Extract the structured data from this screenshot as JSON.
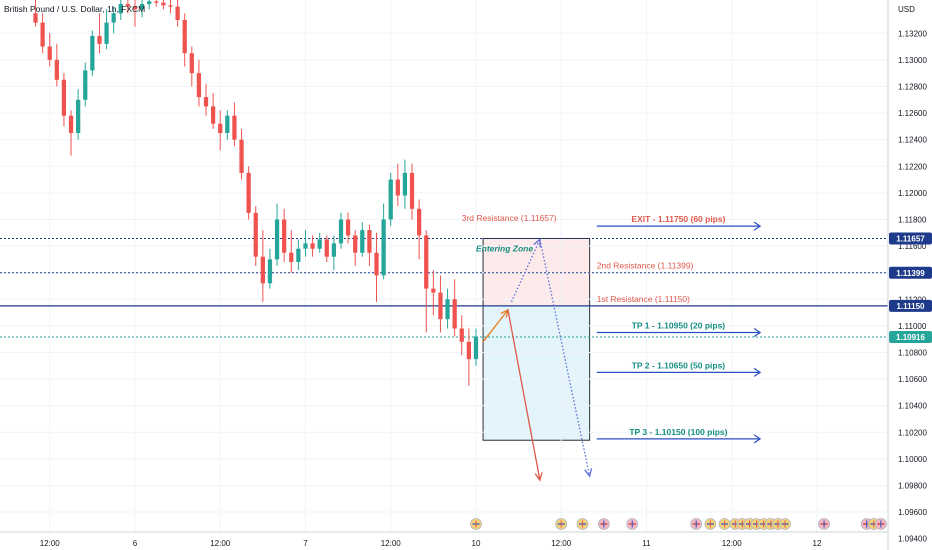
{
  "chart_data": {
    "type": "candlestick",
    "title": "British Pound / U.S. Dollar, 1h, FXCM",
    "currency": "USD",
    "ylim": [
      1.0945,
      1.1345
    ],
    "y_ticks": [
      1.132,
      1.13,
      1.128,
      1.126,
      1.124,
      1.122,
      1.12,
      1.118,
      1.116,
      1.114,
      1.112,
      1.11,
      1.108,
      1.106,
      1.104,
      1.102,
      1.1,
      1.098,
      1.096,
      1.094
    ],
    "x_ticks": [
      {
        "label": "12:00",
        "x": 2
      },
      {
        "label": "6",
        "x": 14
      },
      {
        "label": "12:00",
        "x": 26
      },
      {
        "label": "7",
        "x": 38
      },
      {
        "label": "12:00",
        "x": 50
      },
      {
        "label": "10",
        "x": 62
      },
      {
        "label": "12:00",
        "x": 74
      },
      {
        "label": "11",
        "x": 86
      },
      {
        "label": "12:00",
        "x": 98
      },
      {
        "label": "12",
        "x": 110
      }
    ],
    "xlim": [
      -5,
      120
    ],
    "candles": [
      [
        1.1335,
        1.1345,
        1.1325,
        1.1328
      ],
      [
        1.1328,
        1.1335,
        1.1305,
        1.131
      ],
      [
        1.131,
        1.132,
        1.1295,
        1.13
      ],
      [
        1.13,
        1.1312,
        1.128,
        1.1285
      ],
      [
        1.1285,
        1.129,
        1.125,
        1.1258
      ],
      [
        1.1258,
        1.1262,
        1.1228,
        1.1245
      ],
      [
        1.1245,
        1.1278,
        1.124,
        1.127
      ],
      [
        1.127,
        1.1298,
        1.1265,
        1.1292
      ],
      [
        1.1292,
        1.1322,
        1.1288,
        1.1318
      ],
      [
        1.1318,
        1.1335,
        1.1305,
        1.1312
      ],
      [
        1.1312,
        1.1338,
        1.1308,
        1.1328
      ],
      [
        1.1328,
        1.134,
        1.132,
        1.1335
      ],
      [
        1.1335,
        1.1345,
        1.133,
        1.1342
      ],
      [
        1.1342,
        1.1345,
        1.1335,
        1.134
      ],
      [
        1.134,
        1.1345,
        1.1325,
        1.1338
      ],
      [
        1.1338,
        1.1345,
        1.1332,
        1.1342
      ],
      [
        1.1342,
        1.1345,
        1.1338,
        1.1344
      ],
      [
        1.1344,
        1.1345,
        1.134,
        1.1343
      ],
      [
        1.1343,
        1.1345,
        1.1338,
        1.1341
      ],
      [
        1.1341,
        1.1345,
        1.1335,
        1.134
      ],
      [
        1.134,
        1.1345,
        1.1325,
        1.133
      ],
      [
        1.133,
        1.1335,
        1.1295,
        1.1305
      ],
      [
        1.1305,
        1.131,
        1.128,
        1.129
      ],
      [
        1.129,
        1.13,
        1.1265,
        1.1272
      ],
      [
        1.1272,
        1.1282,
        1.1258,
        1.1265
      ],
      [
        1.1265,
        1.1275,
        1.1248,
        1.1252
      ],
      [
        1.1252,
        1.1262,
        1.1232,
        1.1245
      ],
      [
        1.1245,
        1.1262,
        1.124,
        1.1258
      ],
      [
        1.1258,
        1.1268,
        1.1235,
        1.124
      ],
      [
        1.124,
        1.1248,
        1.121,
        1.1215
      ],
      [
        1.1215,
        1.122,
        1.118,
        1.1185
      ],
      [
        1.1185,
        1.119,
        1.1145,
        1.1152
      ],
      [
        1.1152,
        1.1172,
        1.1118,
        1.1132
      ],
      [
        1.1132,
        1.1158,
        1.1128,
        1.115
      ],
      [
        1.115,
        1.1192,
        1.1145,
        1.118
      ],
      [
        1.118,
        1.1188,
        1.1148,
        1.1155
      ],
      [
        1.1155,
        1.1172,
        1.114,
        1.1148
      ],
      [
        1.1148,
        1.1165,
        1.1142,
        1.1158
      ],
      [
        1.1158,
        1.1172,
        1.1152,
        1.1162
      ],
      [
        1.1162,
        1.1168,
        1.1152,
        1.1158
      ],
      [
        1.1158,
        1.117,
        1.1155,
        1.1165
      ],
      [
        1.1165,
        1.1168,
        1.1148,
        1.1152
      ],
      [
        1.1152,
        1.1168,
        1.1142,
        1.1162
      ],
      [
        1.1162,
        1.1185,
        1.1158,
        1.118
      ],
      [
        1.118,
        1.1185,
        1.1162,
        1.1168
      ],
      [
        1.1168,
        1.1172,
        1.1145,
        1.1155
      ],
      [
        1.1155,
        1.1178,
        1.1152,
        1.1172
      ],
      [
        1.1172,
        1.1176,
        1.1145,
        1.1155
      ],
      [
        1.1155,
        1.117,
        1.1118,
        1.1138
      ],
      [
        1.1138,
        1.1192,
        1.1135,
        1.118
      ],
      [
        1.118,
        1.1215,
        1.1175,
        1.121
      ],
      [
        1.121,
        1.1222,
        1.119,
        1.1198
      ],
      [
        1.1198,
        1.1225,
        1.1188,
        1.1215
      ],
      [
        1.1215,
        1.1222,
        1.118,
        1.1188
      ],
      [
        1.1188,
        1.1195,
        1.115,
        1.1168
      ],
      [
        1.1168,
        1.1172,
        1.1095,
        1.1128
      ],
      [
        1.1128,
        1.1142,
        1.1108,
        1.1125
      ],
      [
        1.1125,
        1.1138,
        1.1095,
        1.1105
      ],
      [
        1.1105,
        1.1128,
        1.1098,
        1.112
      ],
      [
        1.112,
        1.1135,
        1.1092,
        1.1098
      ],
      [
        1.1098,
        1.1108,
        1.1078,
        1.1088
      ],
      [
        1.1088,
        1.1098,
        1.1055,
        1.1075
      ],
      [
        1.1075,
        1.1098,
        1.107,
        1.1092
      ]
    ],
    "horizontal_lines": [
      {
        "y": 1.11657,
        "style": "dotted",
        "color": "#1e3a8a",
        "label": "1.11657"
      },
      {
        "y": 1.11399,
        "style": "dotted",
        "color": "#1e3a8a",
        "label": "1.11399"
      },
      {
        "y": 1.1115,
        "style": "solid",
        "color": "#1e3a8a",
        "label": "1.11150"
      },
      {
        "y": 1.10916,
        "style": "dotted",
        "color": "#26a69a",
        "label": "1.10916"
      }
    ],
    "zones": [
      {
        "x0": 63,
        "x1": 78,
        "y0": 1.1115,
        "y1": 1.11657,
        "color": "#fdeaea"
      },
      {
        "x0": 63,
        "x1": 78,
        "y0": 1.1014,
        "y1": 1.1115,
        "color": "#e3f5fa"
      }
    ],
    "annotations": [
      {
        "text": "3rd Resistance (1.11657)",
        "x": 60,
        "y": 1.1179,
        "color": "#e0584a",
        "anchor": "start"
      },
      {
        "text": "Entering Zone",
        "x": 62,
        "y": 1.1156,
        "color": "#168f82",
        "anchor": "start",
        "italic": true
      },
      {
        "text": "2nd Resistance (1.11399)",
        "x": 79,
        "y": 1.1143,
        "color": "#e0584a",
        "anchor": "start"
      },
      {
        "text": "1st Resistance (1.11150)",
        "x": 79,
        "y": 1.1118,
        "color": "#e0584a",
        "anchor": "start"
      }
    ],
    "target_arrows": [
      {
        "text": "EXIT - 1.11750 (60 pips)",
        "y": 1.1175,
        "color": "#e0584a"
      },
      {
        "text": "TP 1 - 1.10950 (20 pips)",
        "y": 1.1095,
        "color": "#168f82"
      },
      {
        "text": "TP 2 - 1.10650 (50 pips)",
        "y": 1.1065,
        "color": "#168f82"
      },
      {
        "text": "TP 3 - 1.10150 (100 pips)",
        "y": 1.1015,
        "color": "#168f82"
      }
    ],
    "arrows": [
      {
        "x0": 63,
        "y0": 1.1088,
        "x1": 66.5,
        "y1": 1.1112,
        "color": "#e67e22",
        "dashed": false
      },
      {
        "x0": 66.5,
        "y0": 1.1112,
        "x1": 71,
        "y1": 1.0984,
        "color": "#e0584a",
        "dashed": false
      },
      {
        "x0": 67,
        "y0": 1.1118,
        "x1": 71,
        "y1": 1.1165,
        "color": "#5b6cd6",
        "dashed": true
      },
      {
        "x0": 71,
        "y0": 1.1165,
        "x1": 78,
        "y1": 1.0987,
        "color": "#5b6cd6",
        "dashed": true
      }
    ],
    "event_icons": [
      {
        "x": 62,
        "kind": "us"
      },
      {
        "x": 74,
        "kind": "us"
      },
      {
        "x": 77,
        "kind": "us"
      },
      {
        "x": 80,
        "kind": "uk"
      },
      {
        "x": 84,
        "kind": "uk"
      },
      {
        "x": 93,
        "kind": "uk"
      },
      {
        "x": 95,
        "kind": "us"
      },
      {
        "x": 97,
        "kind": "us"
      },
      {
        "x": 98.5,
        "kind": "us"
      },
      {
        "x": 99.5,
        "kind": "us"
      },
      {
        "x": 100.5,
        "kind": "us"
      },
      {
        "x": 101.5,
        "kind": "us"
      },
      {
        "x": 102.5,
        "kind": "us"
      },
      {
        "x": 103.5,
        "kind": "us"
      },
      {
        "x": 104.5,
        "kind": "us"
      },
      {
        "x": 105.5,
        "kind": "us"
      },
      {
        "x": 111,
        "kind": "uk"
      },
      {
        "x": 117,
        "kind": "uk"
      },
      {
        "x": 118,
        "kind": "us"
      },
      {
        "x": 119,
        "kind": "uk"
      }
    ]
  }
}
